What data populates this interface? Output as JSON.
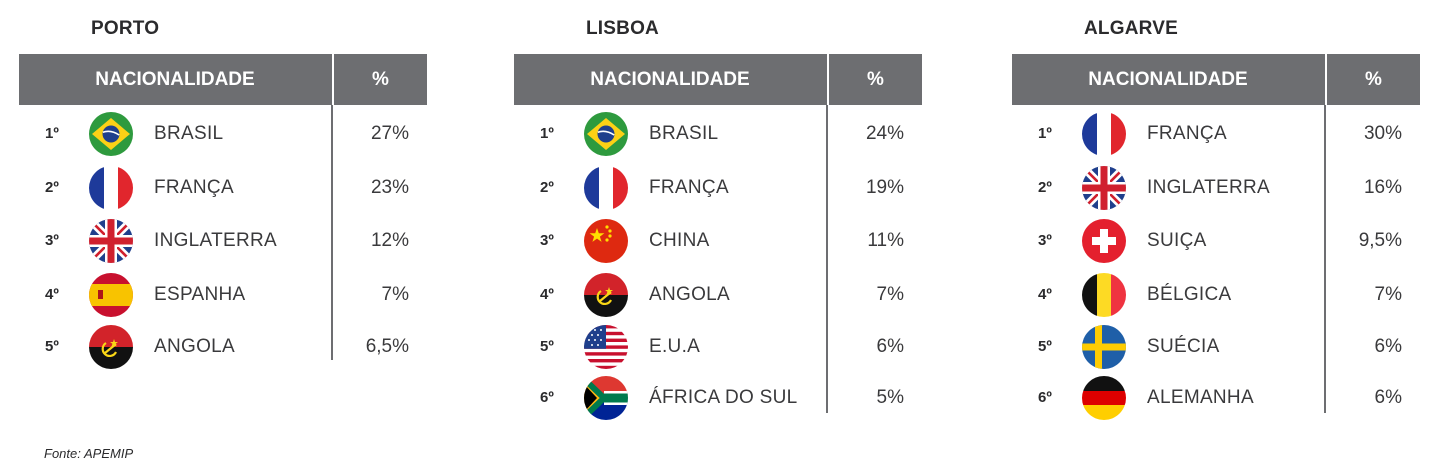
{
  "source": "Fonte: APEMIP",
  "regions": [
    {
      "title": "PORTO",
      "header": {
        "nationality": "NACIONALIDADE",
        "percent": "%"
      },
      "rows": [
        {
          "rank": "1º",
          "flag": "brazil-flag-icon",
          "country": "BRASIL",
          "pct": "27%"
        },
        {
          "rank": "2º",
          "flag": "france-flag-icon",
          "country": "FRANÇA",
          "pct": "23%"
        },
        {
          "rank": "3º",
          "flag": "uk-flag-icon",
          "country": "INGLATERRA",
          "pct": "12%"
        },
        {
          "rank": "4º",
          "flag": "spain-flag-icon",
          "country": "ESPANHA",
          "pct": "7%"
        },
        {
          "rank": "5º",
          "flag": "angola-flag-icon",
          "country": "ANGOLA",
          "pct": "6,5%"
        }
      ]
    },
    {
      "title": "LISBOA",
      "header": {
        "nationality": "NACIONALIDADE",
        "percent": "%"
      },
      "rows": [
        {
          "rank": "1º",
          "flag": "brazil-flag-icon",
          "country": "BRASIL",
          "pct": "24%"
        },
        {
          "rank": "2º",
          "flag": "france-flag-icon",
          "country": "FRANÇA",
          "pct": "19%"
        },
        {
          "rank": "3º",
          "flag": "china-flag-icon",
          "country": "CHINA",
          "pct": "11%"
        },
        {
          "rank": "4º",
          "flag": "angola-flag-icon",
          "country": "ANGOLA",
          "pct": "7%"
        },
        {
          "rank": "5º",
          "flag": "usa-flag-icon",
          "country": "E.U.A",
          "pct": "6%"
        },
        {
          "rank": "6º",
          "flag": "south-africa-flag-icon",
          "country": "ÁFRICA DO SUL",
          "pct": "5%"
        }
      ]
    },
    {
      "title": "ALGARVE",
      "header": {
        "nationality": "NACIONALIDADE",
        "percent": "%"
      },
      "rows": [
        {
          "rank": "1º",
          "flag": "france-flag-icon",
          "country": "FRANÇA",
          "pct": "30%"
        },
        {
          "rank": "2º",
          "flag": "uk-flag-icon",
          "country": "INGLATERRA",
          "pct": "16%"
        },
        {
          "rank": "3º",
          "flag": "switzerland-flag-icon",
          "country": "SUIÇA",
          "pct": "9,5%"
        },
        {
          "rank": "4º",
          "flag": "belgium-flag-icon",
          "country": "BÉLGICA",
          "pct": "7%"
        },
        {
          "rank": "5º",
          "flag": "sweden-flag-icon",
          "country": "SUÉCIA",
          "pct": "6%"
        },
        {
          "rank": "6º",
          "flag": "germany-flag-icon",
          "country": "ALEMANHA",
          "pct": "6%"
        }
      ]
    }
  ]
}
